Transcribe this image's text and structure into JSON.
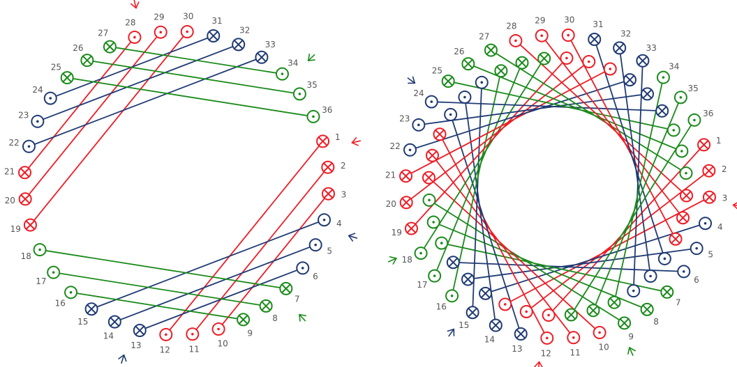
{
  "colors": {
    "red": "#ee1c25",
    "green": "#1a8a1a",
    "blue": "#1f3a73",
    "label": "#555555"
  },
  "left_winding": {
    "slots": [
      {
        "n": "1",
        "phase": "red",
        "dir": "cross"
      },
      {
        "n": "2",
        "phase": "red",
        "dir": "cross"
      },
      {
        "n": "3",
        "phase": "red",
        "dir": "cross"
      },
      {
        "n": "4",
        "phase": "blue",
        "dir": "dot"
      },
      {
        "n": "5",
        "phase": "blue",
        "dir": "dot"
      },
      {
        "n": "6",
        "phase": "blue",
        "dir": "dot"
      },
      {
        "n": "7",
        "phase": "green",
        "dir": "cross"
      },
      {
        "n": "8",
        "phase": "green",
        "dir": "cross"
      },
      {
        "n": "9",
        "phase": "green",
        "dir": "cross"
      },
      {
        "n": "10",
        "phase": "red",
        "dir": "dot"
      },
      {
        "n": "11",
        "phase": "red",
        "dir": "dot"
      },
      {
        "n": "12",
        "phase": "red",
        "dir": "dot"
      },
      {
        "n": "13",
        "phase": "blue",
        "dir": "cross"
      },
      {
        "n": "14",
        "phase": "blue",
        "dir": "cross"
      },
      {
        "n": "15",
        "phase": "blue",
        "dir": "cross"
      },
      {
        "n": "16",
        "phase": "green",
        "dir": "dot"
      },
      {
        "n": "17",
        "phase": "green",
        "dir": "dot"
      },
      {
        "n": "18",
        "phase": "green",
        "dir": "dot"
      },
      {
        "n": "19",
        "phase": "red",
        "dir": "cross"
      },
      {
        "n": "20",
        "phase": "red",
        "dir": "cross"
      },
      {
        "n": "21",
        "phase": "red",
        "dir": "cross"
      },
      {
        "n": "22",
        "phase": "blue",
        "dir": "dot"
      },
      {
        "n": "23",
        "phase": "blue",
        "dir": "dot"
      },
      {
        "n": "24",
        "phase": "blue",
        "dir": "dot"
      },
      {
        "n": "25",
        "phase": "green",
        "dir": "cross"
      },
      {
        "n": "26",
        "phase": "green",
        "dir": "cross"
      },
      {
        "n": "27",
        "phase": "green",
        "dir": "cross"
      },
      {
        "n": "28",
        "phase": "red",
        "dir": "dot"
      },
      {
        "n": "29",
        "phase": "red",
        "dir": "dot"
      },
      {
        "n": "30",
        "phase": "red",
        "dir": "dot"
      },
      {
        "n": "31",
        "phase": "blue",
        "dir": "cross"
      },
      {
        "n": "32",
        "phase": "blue",
        "dir": "cross"
      },
      {
        "n": "33",
        "phase": "blue",
        "dir": "cross"
      },
      {
        "n": "34",
        "phase": "green",
        "dir": "dot"
      },
      {
        "n": "35",
        "phase": "green",
        "dir": "dot"
      },
      {
        "n": "36",
        "phase": "green",
        "dir": "dot"
      }
    ],
    "connections": [
      [
        "1",
        "12",
        "red"
      ],
      [
        "2",
        "11",
        "red"
      ],
      [
        "3",
        "10",
        "red"
      ],
      [
        "19",
        "30",
        "red"
      ],
      [
        "20",
        "29",
        "red"
      ],
      [
        "21",
        "28",
        "red"
      ],
      [
        "4",
        "15",
        "blue"
      ],
      [
        "5",
        "14",
        "blue"
      ],
      [
        "6",
        "13",
        "blue"
      ],
      [
        "22",
        "33",
        "blue"
      ],
      [
        "23",
        "32",
        "blue"
      ],
      [
        "24",
        "31",
        "blue"
      ],
      [
        "7",
        "18",
        "green"
      ],
      [
        "8",
        "17",
        "green"
      ],
      [
        "9",
        "16",
        "green"
      ],
      [
        "25",
        "36",
        "green"
      ],
      [
        "26",
        "35",
        "green"
      ],
      [
        "27",
        "34",
        "green"
      ]
    ],
    "markers": [
      {
        "at": "28",
        "phase": "red"
      },
      {
        "at": "1",
        "phase": "red"
      },
      {
        "at": "34",
        "phase": "green"
      },
      {
        "at": "7",
        "phase": "green"
      },
      {
        "at": "4",
        "phase": "blue"
      },
      {
        "at": "13",
        "phase": "blue"
      }
    ]
  },
  "right_winding": {
    "outer_slots": [
      {
        "n": "1",
        "phase": "red",
        "dir": "cross"
      },
      {
        "n": "2",
        "phase": "red",
        "dir": "cross"
      },
      {
        "n": "3",
        "phase": "red",
        "dir": "cross"
      },
      {
        "n": "4",
        "phase": "blue",
        "dir": "dot"
      },
      {
        "n": "5",
        "phase": "blue",
        "dir": "dot"
      },
      {
        "n": "6",
        "phase": "blue",
        "dir": "dot"
      },
      {
        "n": "7",
        "phase": "green",
        "dir": "cross"
      },
      {
        "n": "8",
        "phase": "green",
        "dir": "cross"
      },
      {
        "n": "9",
        "phase": "green",
        "dir": "cross"
      },
      {
        "n": "10",
        "phase": "red",
        "dir": "dot"
      },
      {
        "n": "11",
        "phase": "red",
        "dir": "dot"
      },
      {
        "n": "12",
        "phase": "red",
        "dir": "dot"
      },
      {
        "n": "13",
        "phase": "blue",
        "dir": "cross"
      },
      {
        "n": "14",
        "phase": "blue",
        "dir": "cross"
      },
      {
        "n": "15",
        "phase": "blue",
        "dir": "cross"
      },
      {
        "n": "16",
        "phase": "green",
        "dir": "dot"
      },
      {
        "n": "17",
        "phase": "green",
        "dir": "dot"
      },
      {
        "n": "18",
        "phase": "green",
        "dir": "dot"
      },
      {
        "n": "19",
        "phase": "red",
        "dir": "cross"
      },
      {
        "n": "20",
        "phase": "red",
        "dir": "cross"
      },
      {
        "n": "21",
        "phase": "red",
        "dir": "cross"
      },
      {
        "n": "22",
        "phase": "blue",
        "dir": "dot"
      },
      {
        "n": "23",
        "phase": "blue",
        "dir": "dot"
      },
      {
        "n": "24",
        "phase": "blue",
        "dir": "dot"
      },
      {
        "n": "25",
        "phase": "green",
        "dir": "cross"
      },
      {
        "n": "26",
        "phase": "green",
        "dir": "cross"
      },
      {
        "n": "27",
        "phase": "green",
        "dir": "cross"
      },
      {
        "n": "28",
        "phase": "red",
        "dir": "dot"
      },
      {
        "n": "29",
        "phase": "red",
        "dir": "dot"
      },
      {
        "n": "30",
        "phase": "red",
        "dir": "dot"
      },
      {
        "n": "31",
        "phase": "blue",
        "dir": "cross"
      },
      {
        "n": "32",
        "phase": "blue",
        "dir": "cross"
      },
      {
        "n": "33",
        "phase": "blue",
        "dir": "cross"
      },
      {
        "n": "34",
        "phase": "green",
        "dir": "dot"
      },
      {
        "n": "35",
        "phase": "green",
        "dir": "dot"
      },
      {
        "n": "36",
        "phase": "green",
        "dir": "dot"
      }
    ],
    "markers": [
      {
        "at": "24",
        "phase": "blue"
      },
      {
        "at": "18",
        "phase": "green"
      },
      {
        "at": "15",
        "phase": "blue"
      },
      {
        "at": "12",
        "phase": "red"
      },
      {
        "at": "9",
        "phase": "green"
      },
      {
        "at": "3",
        "phase": "red"
      }
    ]
  }
}
